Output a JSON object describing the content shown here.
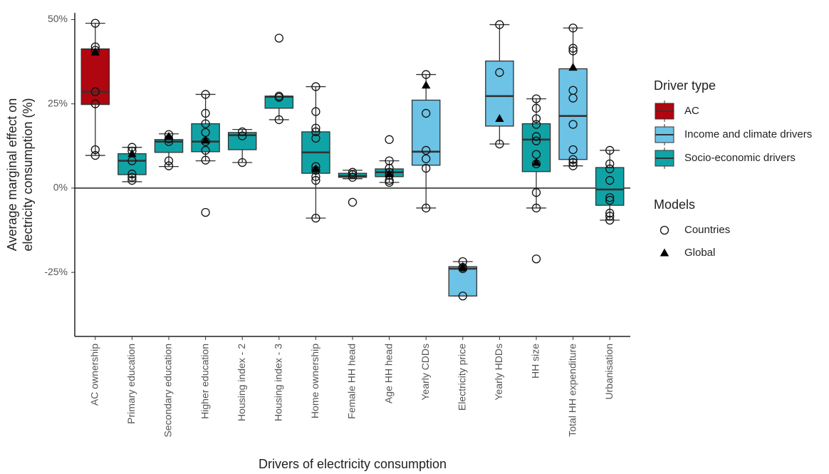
{
  "chart_data": {
    "type": "boxplot",
    "ylabel": [
      "Average marginal effect on",
      "electricity consumption (%)"
    ],
    "xlabel": "Drivers of electricity consumption",
    "ylim": [
      -44,
      52
    ],
    "yticks": [
      {
        "value": 50,
        "label": "50%"
      },
      {
        "value": 25,
        "label": "25%"
      },
      {
        "value": 0,
        "label": "0%"
      },
      {
        "value": -25,
        "label": "-25%"
      }
    ],
    "reference_line": 0,
    "categories": [
      "AC ownership",
      "Primary education",
      "Secondary education",
      "Higher education",
      "Housing index - 2",
      "Housing index - 3",
      "Home ownership",
      "Female HH head",
      "Age HH head",
      "Yearly CDDs",
      "Electricity price",
      "Yearly HDDs",
      "HH size",
      "Total HH expenditure",
      "Urbanisation"
    ],
    "boxes": [
      {
        "driver_type": "AC",
        "whisker_low": 9.7,
        "q1": 24.8,
        "median": 28.6,
        "q3": 41.3,
        "whisker_high": 48.9,
        "countries": [
          48.9,
          41.9,
          40.9,
          28.6,
          25.0,
          11.4,
          9.7
        ],
        "global": 40.3
      },
      {
        "driver_type": "Socio-economic drivers",
        "whisker_low": 1.9,
        "q1": 4.0,
        "median": 8.1,
        "q3": 10.2,
        "whisker_high": 12.1,
        "countries": [
          12.1,
          11.0,
          8.1,
          4.2,
          3.2,
          2.3
        ],
        "global": 10.2
      },
      {
        "driver_type": "Socio-economic drivers",
        "whisker_low": 6.4,
        "q1": 10.6,
        "median": 13.8,
        "q3": 14.4,
        "whisker_high": 16.1,
        "countries": [
          15.9,
          14.6,
          13.8,
          8.1,
          6.6
        ],
        "global": 15.3
      },
      {
        "driver_type": "Socio-economic drivers",
        "whisker_low": 8.1,
        "q1": 10.8,
        "median": 13.8,
        "q3": 19.1,
        "whisker_high": 27.8,
        "countries": [
          27.8,
          22.2,
          19.1,
          16.5,
          13.8,
          11.2,
          8.3,
          -7.2
        ],
        "global": 14.2
      },
      {
        "driver_type": "Socio-economic drivers",
        "whisker_low": 7.6,
        "q1": 11.4,
        "median": 15.7,
        "q3": 16.5,
        "whisker_high": 17.4,
        "countries": [
          16.7,
          15.5,
          7.6
        ],
        "global": null
      },
      {
        "driver_type": "Socio-economic drivers",
        "whisker_low": 20.3,
        "q1": 23.7,
        "median": 27.1,
        "q3": 27.3,
        "whisker_high": 27.3,
        "countries": [
          44.5,
          27.3,
          26.9,
          20.3
        ],
        "global": null
      },
      {
        "driver_type": "Socio-economic drivers",
        "whisker_low": -8.9,
        "q1": 4.4,
        "median": 10.6,
        "q3": 16.7,
        "whisker_high": 30.1,
        "countries": [
          30.1,
          22.7,
          17.8,
          16.7,
          14.8,
          6.4,
          5.3,
          3.4,
          2.3,
          -8.9
        ],
        "global": 5.7
      },
      {
        "driver_type": "Socio-economic drivers",
        "whisker_low": 2.8,
        "q1": 3.2,
        "median": 3.6,
        "q3": 4.4,
        "whisker_high": 5.3,
        "countries": [
          4.7,
          4.0,
          3.2,
          -4.2
        ],
        "global": null
      },
      {
        "driver_type": "Socio-economic drivers",
        "whisker_low": 1.7,
        "q1": 3.4,
        "median": 4.7,
        "q3": 5.7,
        "whisker_high": 8.1,
        "countries": [
          14.4,
          8.1,
          5.9,
          4.7,
          3.8,
          2.3,
          1.7
        ],
        "global": 4.2
      },
      {
        "driver_type": "Income and climate drivers",
        "whisker_low": -5.9,
        "q1": 6.8,
        "median": 10.8,
        "q3": 26.1,
        "whisker_high": 33.7,
        "countries": [
          33.7,
          22.2,
          11.2,
          8.7,
          5.9,
          -5.9
        ],
        "global": 30.5
      },
      {
        "driver_type": "Income and climate drivers",
        "whisker_low": -32.0,
        "q1": -32.0,
        "median": -23.9,
        "q3": -23.3,
        "whisker_high": -21.8,
        "countries": [
          -21.8,
          -23.5,
          -23.9,
          -32.0
        ],
        "global": -23.5
      },
      {
        "driver_type": "Income and climate drivers",
        "whisker_low": 13.1,
        "q1": 18.4,
        "median": 27.3,
        "q3": 37.7,
        "whisker_high": 48.5,
        "countries": [
          48.5,
          34.3,
          13.1
        ],
        "global": 20.6
      },
      {
        "driver_type": "Socio-economic drivers",
        "whisker_low": -5.9,
        "q1": 4.9,
        "median": 14.4,
        "q3": 19.1,
        "whisker_high": 26.5,
        "countries": [
          26.5,
          23.7,
          20.6,
          18.9,
          15.3,
          14.0,
          10.0,
          7.2,
          -1.3,
          -5.9,
          -21.0
        ],
        "global": 7.6
      },
      {
        "driver_type": "Income and climate drivers",
        "whisker_low": 6.6,
        "q1": 8.5,
        "median": 21.4,
        "q3": 35.4,
        "whisker_high": 47.5,
        "countries": [
          47.5,
          41.5,
          40.7,
          29.0,
          26.7,
          18.9,
          11.4,
          8.5,
          7.6,
          6.6
        ],
        "global": 35.8
      },
      {
        "driver_type": "Socio-economic drivers",
        "whisker_low": -9.5,
        "q1": -5.1,
        "median": -0.4,
        "q3": 6.1,
        "whisker_high": 11.2,
        "countries": [
          11.2,
          7.2,
          5.7,
          2.3,
          -2.8,
          -3.6,
          -7.4,
          -8.3,
          -9.5
        ],
        "global": null
      }
    ],
    "legend": {
      "fill_title": "Driver type",
      "fills": [
        {
          "name": "AC",
          "color": "#b0060f"
        },
        {
          "name": "Income and climate drivers",
          "color": "#6cc3e6"
        },
        {
          "name": "Socio-economic drivers",
          "color": "#10a3a6"
        }
      ],
      "shape_title": "Models",
      "shapes": [
        {
          "name": "Countries",
          "shape": "circle"
        },
        {
          "name": "Global",
          "shape": "triangle"
        }
      ]
    }
  }
}
